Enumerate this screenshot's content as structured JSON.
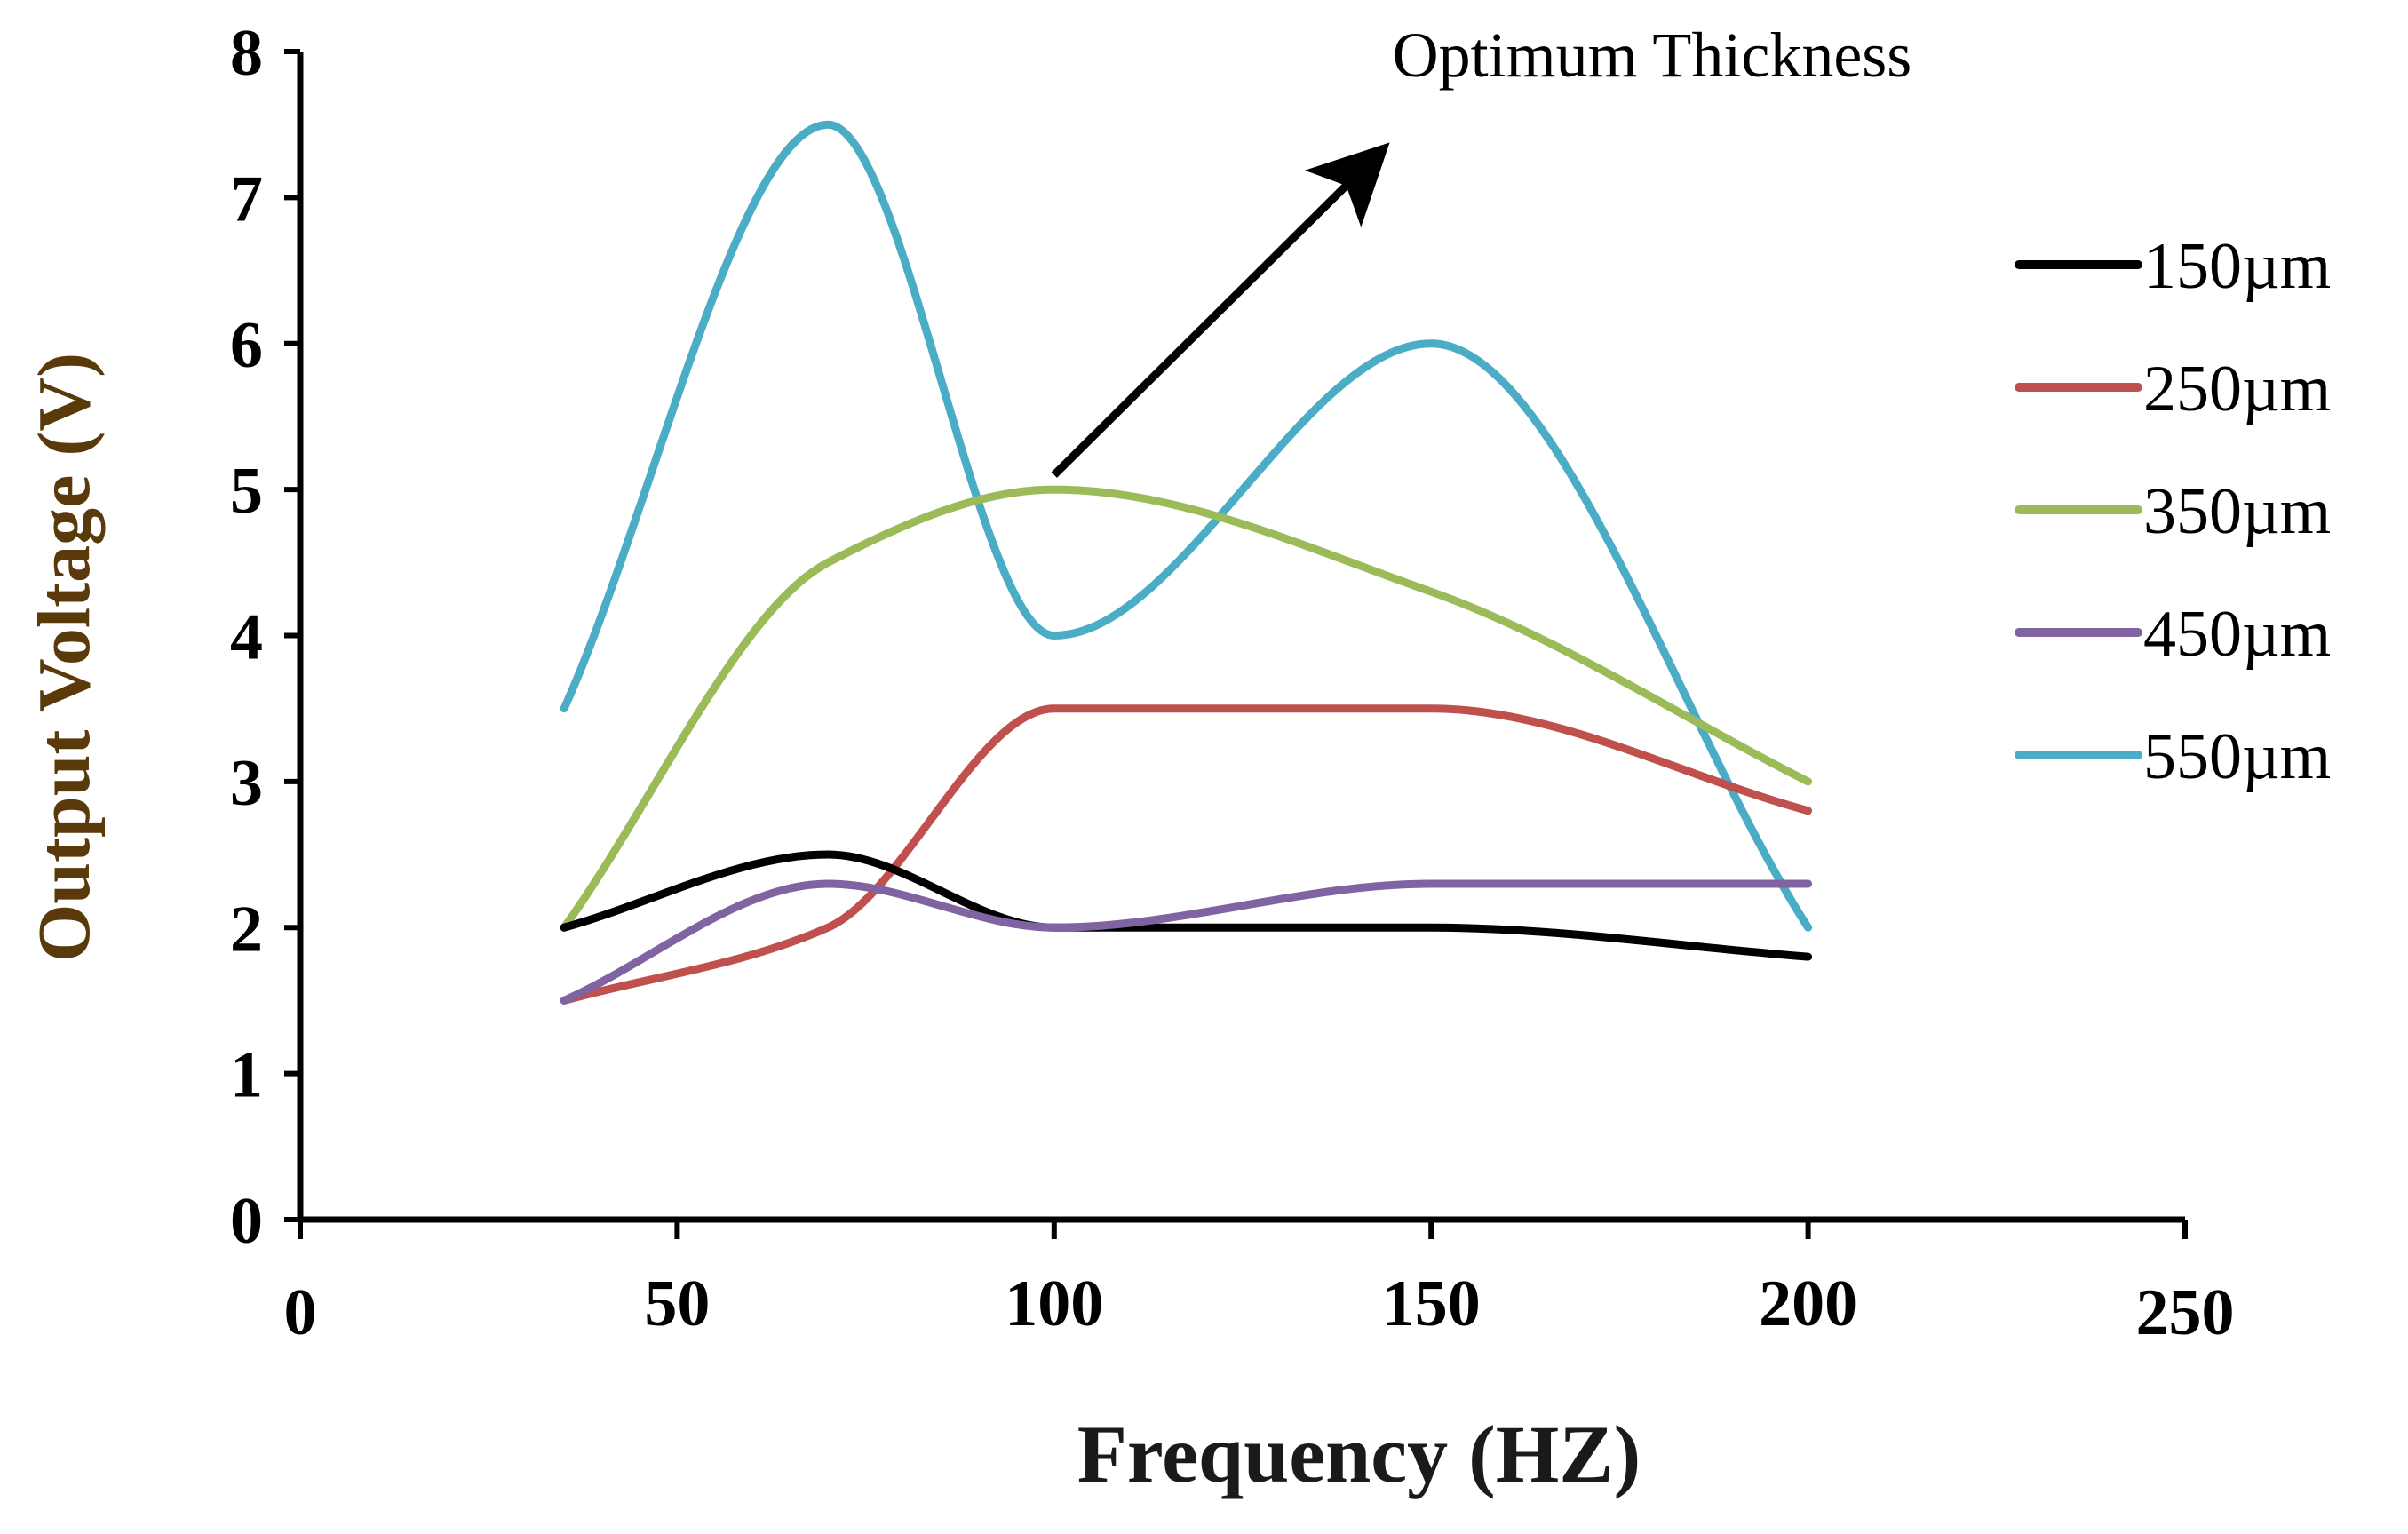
{
  "chart_data": {
    "type": "line",
    "title": "",
    "xlabel": "Frequency (HZ)",
    "ylabel": "Output Voltage (V)",
    "xlim": [
      0,
      250
    ],
    "ylim": [
      0,
      8
    ],
    "x_ticks": [
      0,
      50,
      100,
      150,
      200,
      250
    ],
    "x_tick_labels": [
      "0",
      "50",
      "100",
      "150",
      "200",
      "250"
    ],
    "y_ticks": [
      0,
      1,
      2,
      3,
      4,
      5,
      6,
      7,
      8
    ],
    "y_tick_labels": [
      "0",
      "1",
      "2",
      "3",
      "4",
      "5",
      "6",
      "7",
      "8"
    ],
    "grid": false,
    "legend_position": "right",
    "x": [
      35,
      70,
      100,
      150,
      200
    ],
    "series": [
      {
        "name": "150µm",
        "color": "#000000",
        "values": [
          2.0,
          2.5,
          2.0,
          2.0,
          1.8
        ]
      },
      {
        "name": "250µm",
        "color": "#c0504d",
        "values": [
          1.5,
          2.0,
          3.5,
          3.5,
          2.8
        ]
      },
      {
        "name": "350µm",
        "color": "#9bbb59",
        "values": [
          2.0,
          4.5,
          5.0,
          4.3,
          3.0
        ]
      },
      {
        "name": "450µm",
        "color": "#8064a2",
        "values": [
          1.5,
          2.3,
          2.0,
          2.3,
          2.3
        ]
      },
      {
        "name": "550µm",
        "color": "#4bacc6",
        "values": [
          3.5,
          7.5,
          4.0,
          6.0,
          2.0
        ]
      }
    ],
    "annotations": [
      {
        "text": "Optimum Thickness",
        "arrow_from": [
          100,
          5.1
        ],
        "arrow_to": [
          143,
          7.3
        ]
      }
    ],
    "colors": {
      "axis": "#000000",
      "axis_title": "#5a3a0a",
      "x_axis_title": "#1a1a1a"
    }
  }
}
